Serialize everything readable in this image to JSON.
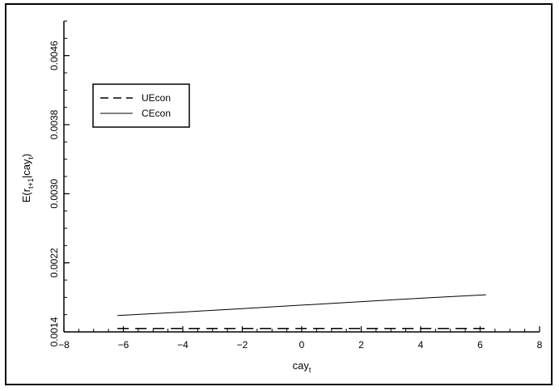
{
  "chart_data": {
    "type": "line",
    "xlabel": "cay",
    "xlabel_sub": "t",
    "ylabel_parts": [
      "E(r",
      "t+1",
      "|cay",
      "t",
      ")"
    ],
    "xlim": [
      -8,
      8
    ],
    "ylim": [
      0.0014,
      0.005
    ],
    "x_ticks": [
      -8,
      -6,
      -4,
      -2,
      0,
      2,
      4,
      6,
      8
    ],
    "x_tick_labels": [
      "−8",
      "−6",
      "−4",
      "−2",
      "0",
      "2",
      "4",
      "6",
      "8"
    ],
    "y_ticks": [
      0.0014,
      0.0022,
      0.003,
      0.0038,
      0.0046
    ],
    "y_tick_labels": [
      "0.0014",
      "0.0022",
      "0.0030",
      "0.0038",
      "0.0046"
    ],
    "legend_position": "top-left",
    "series": [
      {
        "name": "UEcon",
        "style": "dashed",
        "x": [
          -6.2,
          6.2
        ],
        "y": [
          0.00144,
          0.00144
        ]
      },
      {
        "name": "CEcon",
        "style": "solid",
        "x": [
          -6.2,
          -4,
          -2,
          0,
          2,
          4,
          6.2
        ],
        "y": [
          0.00159,
          0.00163,
          0.00167,
          0.00171,
          0.00175,
          0.00179,
          0.00183
        ]
      }
    ]
  }
}
